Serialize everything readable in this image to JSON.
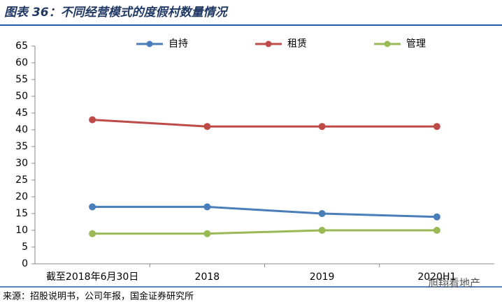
{
  "chart_data": {
    "type": "line",
    "title": "图表 36：不同经营模式的度假村数量情况",
    "source": "来源：招股说明书，公司年报，国金证券研究所",
    "watermark": "旭翔看地产",
    "categories": [
      "截至2018年6月30日",
      "2018",
      "2019",
      "2020H1"
    ],
    "series": [
      {
        "name": "自持",
        "color": "#4a7ebb",
        "values": [
          17,
          17,
          15,
          14
        ]
      },
      {
        "name": "租赁",
        "color": "#be4b48",
        "values": [
          43,
          41,
          41,
          41
        ]
      },
      {
        "name": "管理",
        "color": "#98b954",
        "values": [
          9,
          9,
          10,
          10
        ]
      }
    ],
    "ylim": [
      0,
      65
    ],
    "yticks": [
      0,
      5,
      10,
      15,
      20,
      25,
      30,
      35,
      40,
      45,
      50,
      55,
      60,
      65
    ],
    "grid": false,
    "legend": "top"
  }
}
